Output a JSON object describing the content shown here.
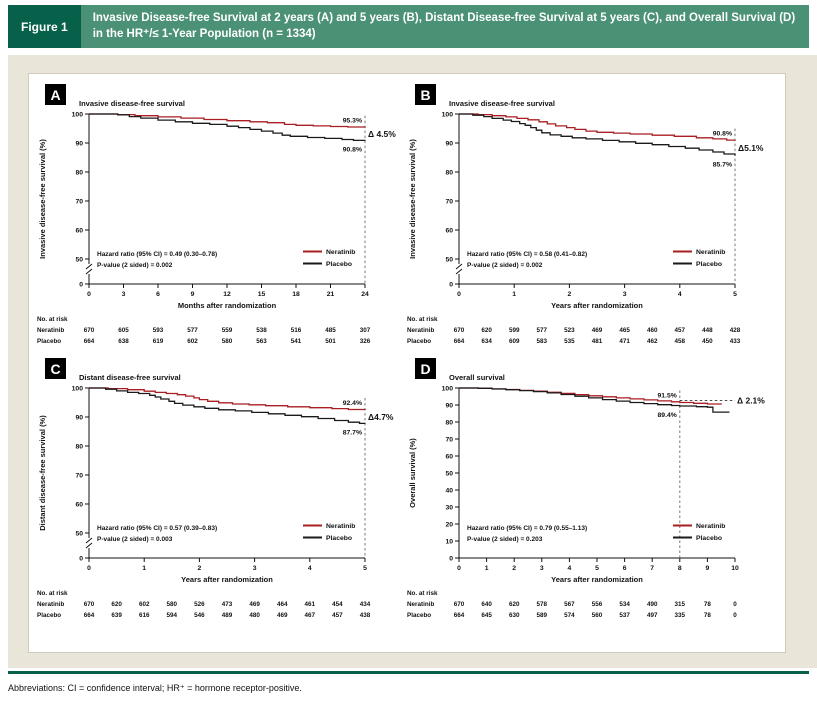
{
  "figure_header": {
    "label": "Figure 1",
    "title": "Invasive Disease-free Survival at 2 years (A) and 5 years (B), Distant Disease-free Survival at 5 years (C), and Overall Survival (D) in the HR⁺/≤ 1-Year Population (n = 1334)"
  },
  "footer": {
    "abbreviations": "Abbreviations: CI = confidence interval; HR⁺ = hormone receptor-positive."
  },
  "colors": {
    "header_dark_green": "#07604a",
    "header_green": "#4a9176",
    "beige_background": "#e9e5d8",
    "neratinib_red": "#a81e22",
    "placebo_black": "#1a1a1a",
    "axis_black": "#111111",
    "dashed_gray": "#777777"
  },
  "chart_data": [
    {
      "type": "line",
      "panel_label": "A",
      "title": "Invasive disease-free survival",
      "ylabel": "Invasive disease-free survival (%)",
      "xlabel": "Months after randomization",
      "xlim": [
        0,
        24
      ],
      "ylim": [
        0,
        100
      ],
      "x_ticks": [
        0,
        3,
        6,
        9,
        12,
        15,
        18,
        21,
        24
      ],
      "y_ticks": [
        0,
        50,
        60,
        70,
        80,
        90,
        100
      ],
      "y_break": true,
      "vline_x": 24,
      "end_labels": {
        "top": {
          "text": "95.3%",
          "value": 95.3
        },
        "bottom": {
          "text": "90.8%",
          "value": 90.8
        }
      },
      "delta": {
        "text": "Δ 4.5%",
        "connector": false
      },
      "hazard": {
        "line1": "Hazard ratio (95% CI) = 0.49 (0.30–0.78)",
        "line2": "P-value (2 sided) = 0.002"
      },
      "series": [
        {
          "name": "Neratinib",
          "color": "#a81e22",
          "points": [
            [
              0,
              100
            ],
            [
              2.5,
              99.8
            ],
            [
              4,
              99.4
            ],
            [
              6,
              99.0
            ],
            [
              8,
              98.6
            ],
            [
              10,
              98.1
            ],
            [
              12,
              97.7
            ],
            [
              14,
              97.3
            ],
            [
              15.5,
              97.0
            ],
            [
              17,
              96.4
            ],
            [
              18,
              96.1
            ],
            [
              19.5,
              95.9
            ],
            [
              21,
              95.7
            ],
            [
              22.5,
              95.5
            ],
            [
              24,
              95.3
            ]
          ]
        },
        {
          "name": "Placebo",
          "color": "#1a1a1a",
          "points": [
            [
              0,
              100
            ],
            [
              2.5,
              99.7
            ],
            [
              3.5,
              99.1
            ],
            [
              4.5,
              98.6
            ],
            [
              6,
              97.9
            ],
            [
              7.5,
              97.3
            ],
            [
              9,
              96.8
            ],
            [
              10.5,
              96.4
            ],
            [
              12,
              95.8
            ],
            [
              13,
              95.3
            ],
            [
              14,
              94.7
            ],
            [
              15,
              94.1
            ],
            [
              16,
              93.4
            ],
            [
              16.8,
              92.7
            ],
            [
              17.5,
              92.3
            ],
            [
              19,
              91.9
            ],
            [
              20.5,
              91.6
            ],
            [
              22,
              91.2
            ],
            [
              23,
              90.9
            ],
            [
              24,
              90.8
            ]
          ]
        }
      ],
      "at_risk": {
        "label": "No. at risk",
        "rows": [
          {
            "name": "Neratinib",
            "values": [
              670,
              605,
              593,
              577,
              559,
              538,
              516,
              485,
              307
            ]
          },
          {
            "name": "Placebo",
            "values": [
              664,
              638,
              619,
              602,
              580,
              563,
              541,
              501,
              326
            ]
          }
        ]
      }
    },
    {
      "type": "line",
      "panel_label": "B",
      "title": "Invasive disease-free survival",
      "ylabel": "Invasive disease-free survival (%)",
      "xlabel": "Years after randomization",
      "xlim": [
        0,
        5
      ],
      "ylim": [
        0,
        100
      ],
      "x_ticks": [
        0,
        1,
        2,
        3,
        4,
        5
      ],
      "y_ticks": [
        0,
        50,
        60,
        70,
        80,
        90,
        100
      ],
      "y_break": true,
      "vline_x": 5,
      "end_labels": {
        "top": {
          "text": "90.8%",
          "value": 90.8
        },
        "bottom": {
          "text": "85.7%",
          "value": 85.7
        }
      },
      "delta": {
        "text": "Δ5.1%",
        "connector": false
      },
      "hazard": {
        "line1": "Hazard ratio (95% CI) = 0.58 (0.41–0.82)",
        "line2": "P-value (2 sided) = 0.002"
      },
      "series": [
        {
          "name": "Neratinib",
          "color": "#a81e22",
          "points": [
            [
              0,
              100
            ],
            [
              0.35,
              99.8
            ],
            [
              0.6,
              99.4
            ],
            [
              0.85,
              99.0
            ],
            [
              1.05,
              98.5
            ],
            [
              1.25,
              98.0
            ],
            [
              1.45,
              97.3
            ],
            [
              1.6,
              96.6
            ],
            [
              1.75,
              95.9
            ],
            [
              1.95,
              95.3
            ],
            [
              2.1,
              94.7
            ],
            [
              2.3,
              94.1
            ],
            [
              2.5,
              93.7
            ],
            [
              2.8,
              93.4
            ],
            [
              3.1,
              93.1
            ],
            [
              3.5,
              92.7
            ],
            [
              3.9,
              92.3
            ],
            [
              4.3,
              91.8
            ],
            [
              4.6,
              91.4
            ],
            [
              4.85,
              91.0
            ],
            [
              5,
              90.8
            ]
          ]
        },
        {
          "name": "Placebo",
          "color": "#1a1a1a",
          "points": [
            [
              0,
              100
            ],
            [
              0.25,
              99.6
            ],
            [
              0.45,
              99.1
            ],
            [
              0.6,
              98.5
            ],
            [
              0.8,
              97.9
            ],
            [
              0.95,
              97.4
            ],
            [
              1.1,
              96.7
            ],
            [
              1.2,
              96.1
            ],
            [
              1.3,
              95.3
            ],
            [
              1.4,
              94.4
            ],
            [
              1.5,
              93.5
            ],
            [
              1.65,
              92.8
            ],
            [
              1.85,
              92.3
            ],
            [
              2.05,
              91.8
            ],
            [
              2.3,
              91.4
            ],
            [
              2.6,
              90.9
            ],
            [
              2.9,
              90.4
            ],
            [
              3.2,
              89.9
            ],
            [
              3.5,
              89.4
            ],
            [
              3.8,
              88.8
            ],
            [
              4.1,
              88.2
            ],
            [
              4.35,
              87.6
            ],
            [
              4.6,
              86.9
            ],
            [
              4.8,
              86.2
            ],
            [
              5,
              85.7
            ]
          ]
        }
      ],
      "at_risk": {
        "label": "No. at risk",
        "rows": [
          {
            "name": "Neratinib",
            "values": [
              670,
              620,
              599,
              577,
              523,
              469,
              465,
              460,
              457,
              448,
              428
            ]
          },
          {
            "name": "Placebo",
            "values": [
              664,
              634,
              609,
              583,
              535,
              481,
              471,
              462,
              458,
              450,
              433
            ]
          }
        ]
      }
    },
    {
      "type": "line",
      "panel_label": "C",
      "title": "Distant disease-free survival",
      "ylabel": "Distant disease-free survival (%)",
      "xlabel": "Years after randomization",
      "xlim": [
        0,
        5
      ],
      "ylim": [
        0,
        100
      ],
      "x_ticks": [
        0,
        1,
        2,
        3,
        4,
        5
      ],
      "y_ticks": [
        0,
        50,
        60,
        70,
        80,
        90,
        100
      ],
      "y_break": true,
      "vline_x": 5,
      "end_labels": {
        "top": {
          "text": "92.4%",
          "value": 92.4
        },
        "bottom": {
          "text": "87.7%",
          "value": 87.7
        }
      },
      "delta": {
        "text": "Δ4.7%",
        "connector": false
      },
      "hazard": {
        "line1": "Hazard ratio (95% CI) = 0.57 (0.39–0.83)",
        "line2": "P-value (2 sided) = 0.003"
      },
      "series": [
        {
          "name": "Neratinib",
          "color": "#a81e22",
          "points": [
            [
              0,
              100
            ],
            [
              0.35,
              99.8
            ],
            [
              0.7,
              99.4
            ],
            [
              1.0,
              98.9
            ],
            [
              1.2,
              98.5
            ],
            [
              1.4,
              98.1
            ],
            [
              1.6,
              97.7
            ],
            [
              1.75,
              97.2
            ],
            [
              1.9,
              96.6
            ],
            [
              2.0,
              96.0
            ],
            [
              2.15,
              95.4
            ],
            [
              2.35,
              94.9
            ],
            [
              2.6,
              94.5
            ],
            [
              2.9,
              94.2
            ],
            [
              3.2,
              93.9
            ],
            [
              3.6,
              93.5
            ],
            [
              4.0,
              93.2
            ],
            [
              4.4,
              92.9
            ],
            [
              4.7,
              92.6
            ],
            [
              5,
              92.4
            ]
          ]
        },
        {
          "name": "Placebo",
          "color": "#1a1a1a",
          "points": [
            [
              0,
              100
            ],
            [
              0.3,
              99.6
            ],
            [
              0.5,
              99.0
            ],
            [
              0.7,
              98.5
            ],
            [
              0.9,
              98.1
            ],
            [
              1.1,
              97.5
            ],
            [
              1.2,
              96.9
            ],
            [
              1.3,
              96.2
            ],
            [
              1.45,
              95.4
            ],
            [
              1.55,
              94.7
            ],
            [
              1.7,
              94.1
            ],
            [
              1.9,
              93.5
            ],
            [
              2.1,
              93.0
            ],
            [
              2.35,
              92.5
            ],
            [
              2.65,
              92.1
            ],
            [
              2.95,
              91.6
            ],
            [
              3.25,
              91.1
            ],
            [
              3.55,
              90.6
            ],
            [
              3.85,
              90.1
            ],
            [
              4.15,
              89.5
            ],
            [
              4.45,
              88.8
            ],
            [
              4.7,
              88.2
            ],
            [
              4.9,
              87.8
            ],
            [
              5,
              87.7
            ]
          ]
        }
      ],
      "at_risk": {
        "label": "No. at risk",
        "rows": [
          {
            "name": "Neratinib",
            "values": [
              670,
              620,
              602,
              580,
              526,
              473,
              469,
              464,
              461,
              454,
              434
            ]
          },
          {
            "name": "Placebo",
            "values": [
              664,
              639,
              616,
              594,
              546,
              489,
              480,
              469,
              467,
              457,
              438
            ]
          }
        ]
      }
    },
    {
      "type": "line",
      "panel_label": "D",
      "title": "Overall survival",
      "ylabel": "Overall survival (%)",
      "xlabel": "Years after randomization",
      "xlim": [
        0,
        10
      ],
      "ylim": [
        0,
        100
      ],
      "x_ticks": [
        0,
        1,
        2,
        3,
        4,
        5,
        6,
        7,
        8,
        9,
        10
      ],
      "y_ticks": [
        0,
        10,
        20,
        30,
        40,
        50,
        60,
        70,
        80,
        90,
        100
      ],
      "y_break": false,
      "vline_x": 8,
      "end_labels": {
        "top": {
          "text": "91.5%",
          "value": 91.5
        },
        "bottom": {
          "text": "89.4%",
          "value": 89.4
        }
      },
      "delta": {
        "text": "Δ 2.1%",
        "connector": true
      },
      "hazard": {
        "line1": "Hazard ratio (95% CI) = 0.79 (0.55–1.13)",
        "line2": "P-value (2 sided) = 0.203"
      },
      "series": [
        {
          "name": "Neratinib",
          "color": "#a81e22",
          "points": [
            [
              0,
              100
            ],
            [
              0.7,
              99.8
            ],
            [
              1.2,
              99.5
            ],
            [
              1.7,
              99.1
            ],
            [
              2.2,
              98.6
            ],
            [
              2.7,
              98.1
            ],
            [
              3.2,
              97.5
            ],
            [
              3.7,
              96.8
            ],
            [
              4.2,
              96.1
            ],
            [
              4.7,
              95.4
            ],
            [
              5.2,
              94.8
            ],
            [
              5.7,
              94.2
            ],
            [
              6.2,
              93.6
            ],
            [
              6.7,
              93.0
            ],
            [
              7.2,
              92.4
            ],
            [
              7.7,
              91.9
            ],
            [
              8.0,
              91.5
            ],
            [
              8.5,
              91.0
            ],
            [
              9.0,
              90.6
            ],
            [
              9.5,
              90.3
            ]
          ]
        },
        {
          "name": "Placebo",
          "color": "#1a1a1a",
          "points": [
            [
              0,
              100
            ],
            [
              0.7,
              99.8
            ],
            [
              1.2,
              99.4
            ],
            [
              1.7,
              99.0
            ],
            [
              2.2,
              98.5
            ],
            [
              2.7,
              97.9
            ],
            [
              3.2,
              97.1
            ],
            [
              3.7,
              96.2
            ],
            [
              4.2,
              95.2
            ],
            [
              4.7,
              94.2
            ],
            [
              5.2,
              93.2
            ],
            [
              5.7,
              92.3
            ],
            [
              6.2,
              91.5
            ],
            [
              6.7,
              90.8
            ],
            [
              7.2,
              90.2
            ],
            [
              7.7,
              89.7
            ],
            [
              8.0,
              89.4
            ],
            [
              8.6,
              89.0
            ],
            [
              9.0,
              88.7
            ],
            [
              9.2,
              85.8
            ],
            [
              9.8,
              85.8
            ]
          ]
        }
      ],
      "at_risk": {
        "label": "No. at risk",
        "rows": [
          {
            "name": "Neratinib",
            "values": [
              670,
              640,
              620,
              578,
              567,
              556,
              534,
              490,
              315,
              78,
              0
            ]
          },
          {
            "name": "Placebo",
            "values": [
              664,
              645,
              630,
              589,
              574,
              560,
              537,
              497,
              335,
              78,
              0
            ]
          }
        ]
      }
    }
  ]
}
